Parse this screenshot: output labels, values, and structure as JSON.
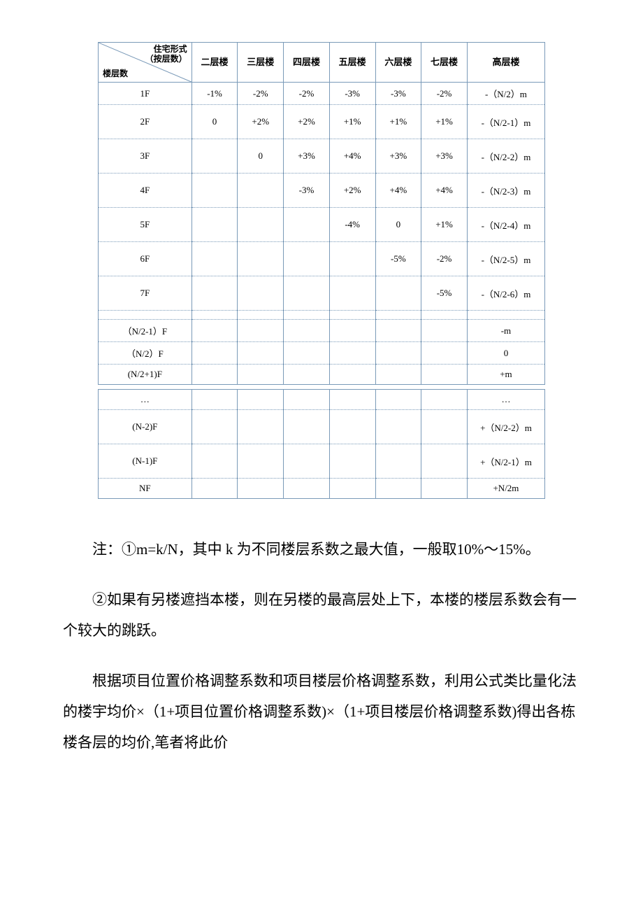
{
  "table": {
    "header": {
      "diag_top_line1": "住宅形式",
      "diag_top_line2": "（按层数）",
      "diag_bottom": "楼层数",
      "cols": [
        "二层楼",
        "三层楼",
        "四层楼",
        "五层楼",
        "六层楼",
        "七层楼",
        "高层楼"
      ]
    },
    "rows_a": [
      {
        "label": "1F",
        "c": [
          "-1%",
          "-2%",
          "-2%",
          "-3%",
          "-3%",
          "-2%",
          "-（N/2）m"
        ],
        "dbl": false
      },
      {
        "label": "2F",
        "c": [
          "0",
          "+2%",
          "+2%",
          "+1%",
          "+1%",
          "+1%",
          "-（N/2-1）m"
        ],
        "dbl": true
      },
      {
        "label": "3F",
        "c": [
          "",
          "0",
          "+3%",
          "+4%",
          "+3%",
          "+3%",
          "-（N/2-2）m"
        ],
        "dbl": true
      },
      {
        "label": "4F",
        "c": [
          "",
          "",
          "-3%",
          "+2%",
          "+4%",
          "+4%",
          "-（N/2-3）m"
        ],
        "dbl": true
      },
      {
        "label": "5F",
        "c": [
          "",
          "",
          "",
          "-4%",
          "0",
          "+1%",
          "-（N/2-4）m"
        ],
        "dbl": true
      },
      {
        "label": "6F",
        "c": [
          "",
          "",
          "",
          "",
          "-5%",
          "-2%",
          "-（N/2-5）m"
        ],
        "dbl": true
      },
      {
        "label": "7F",
        "c": [
          "",
          "",
          "",
          "",
          "",
          "-5%",
          "-（N/2-6）m"
        ],
        "dbl": true
      }
    ],
    "gap_a": {
      "c": [
        "",
        "",
        "",
        "",
        "",
        "",
        ""
      ]
    },
    "rows_b": [
      {
        "label": "（N/2-1）F",
        "c": [
          "",
          "",
          "",
          "",
          "",
          "",
          "-m"
        ]
      },
      {
        "label": "（N/2）F",
        "c": [
          "",
          "",
          "",
          "",
          "",
          "",
          "0"
        ]
      },
      {
        "label": "(N/2+1)F",
        "c": [
          "",
          "",
          "",
          "",
          "",
          "",
          "+m"
        ]
      }
    ],
    "rows_c": [
      {
        "label": "…",
        "c": [
          "",
          "",
          "",
          "",
          "",
          "",
          "…"
        ],
        "dbl": false
      },
      {
        "label": "(N-2)F",
        "c": [
          "",
          "",
          "",
          "",
          "",
          "",
          "+（N/2-2）m"
        ],
        "dbl": true
      },
      {
        "label": "(N-1)F",
        "c": [
          "",
          "",
          "",
          "",
          "",
          "",
          "+（N/2-1）m"
        ],
        "dbl": true
      },
      {
        "label": "NF",
        "c": [
          "",
          "",
          "",
          "",
          "",
          "",
          "+N/2m"
        ],
        "dbl": false
      }
    ]
  },
  "notes": {
    "p1": "注：①m=k/N，其中 k 为不同楼层系数之最大值，一般取10%～15%。",
    "p2": "②如果有另楼遮挡本楼，则在另楼的最高层处上下，本楼的楼层系数会有一个较大的跳跃。",
    "p3": "根据项目位置价格调整系数和项目楼层价格调整系数，利用公式类比量化法的楼宇均价×（1+项目位置价格调整系数)×（1+项目楼层价格调整系数)得出各栋楼各层的均价,笔者将此价"
  }
}
